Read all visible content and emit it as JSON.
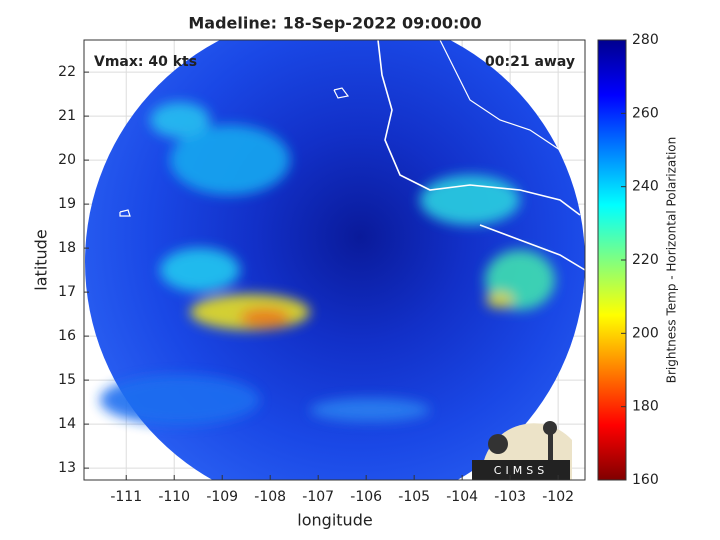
{
  "chart_data": {
    "type": "image",
    "title": "Madeline: 18-Sep-2022 09:00:00",
    "xlabel": "longitude",
    "ylabel": "latitude",
    "xlim": [
      -111.88,
      -101.44
    ],
    "ylim": [
      12.73,
      22.73
    ],
    "xticks": [
      -111,
      -110,
      -109,
      -108,
      -107,
      -106,
      -105,
      -104,
      -103,
      -102
    ],
    "yticks": [
      13,
      14,
      15,
      16,
      17,
      18,
      19,
      20,
      21,
      22
    ],
    "grid": true,
    "annotations": [
      "Vmax: 40 kts",
      "00:21 away"
    ],
    "colorbar": {
      "label": "Brightness Temp - Horizontal Polarization",
      "lim": [
        160,
        280
      ],
      "ticks": [
        160,
        180,
        200,
        220,
        240,
        260,
        280
      ],
      "colormap": "jet",
      "reversed": true
    },
    "logo": "CIMSS"
  }
}
